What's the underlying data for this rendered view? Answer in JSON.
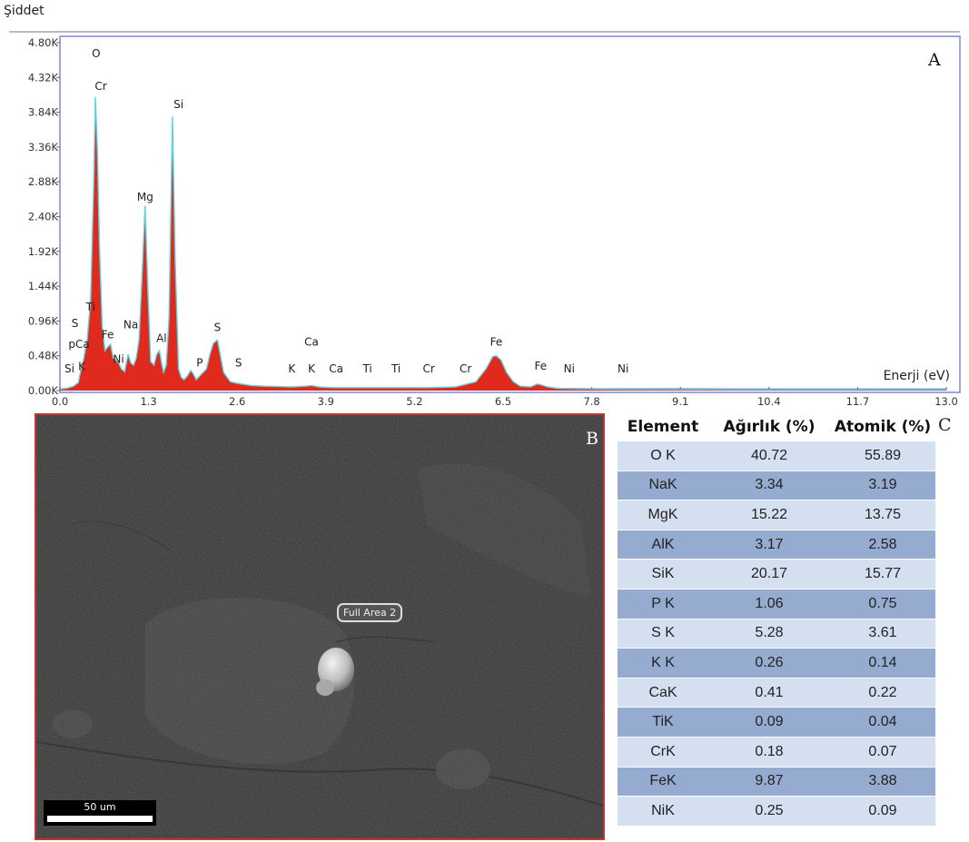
{
  "chart_data": {
    "type": "line",
    "ylabel": "Şiddet",
    "xlabel": "Enerji (eV)",
    "panel_letter": "A",
    "xlim": [
      0.0,
      13.0
    ],
    "ylim": [
      0,
      4800
    ],
    "x_ticks": [
      "0.0",
      "1.3",
      "2.6",
      "3.9",
      "5.2",
      "6.5",
      "7.8",
      "9.1",
      "10.4",
      "11.7",
      "13.0"
    ],
    "y_ticks": [
      "0.00K",
      "0.48K",
      "0.96K",
      "1.44K",
      "1.92K",
      "2.40K",
      "2.88K",
      "3.36K",
      "3.84K",
      "4.32K",
      "4.80K"
    ],
    "series": [
      {
        "x": [
          0.0,
          0.1,
          0.2,
          0.27,
          0.3,
          0.35,
          0.4,
          0.45,
          0.48,
          0.5,
          0.52,
          0.55,
          0.58,
          0.62,
          0.66,
          0.7,
          0.74,
          0.78,
          0.82,
          0.86,
          0.9,
          0.95,
          1.0,
          1.04,
          1.08,
          1.12,
          1.16,
          1.2,
          1.25,
          1.29,
          1.33,
          1.38,
          1.42,
          1.46,
          1.49,
          1.52,
          1.56,
          1.6,
          1.65,
          1.69,
          1.74,
          1.78,
          1.82,
          1.87,
          1.92,
          1.96,
          2.0,
          2.05,
          2.1,
          2.15,
          2.2,
          2.25,
          2.31,
          2.35,
          2.4,
          2.5,
          2.6,
          2.8,
          3.0,
          3.2,
          3.4,
          3.6,
          3.69,
          3.8,
          4.0,
          4.5,
          5.0,
          5.4,
          5.8,
          6.1,
          6.25,
          6.35,
          6.4,
          6.47,
          6.55,
          6.65,
          6.75,
          6.9,
          7.0,
          7.05,
          7.15,
          7.3,
          7.6,
          8.0,
          9.0,
          10.0,
          11.0,
          12.0,
          13.0
        ],
        "y": [
          20,
          30,
          60,
          110,
          250,
          450,
          700,
          1250,
          2300,
          3000,
          4050,
          3300,
          2000,
          900,
          550,
          600,
          640,
          450,
          420,
          380,
          300,
          260,
          500,
          380,
          350,
          450,
          700,
          1500,
          2550,
          1400,
          400,
          350,
          500,
          550,
          380,
          250,
          350,
          1000,
          3780,
          1800,
          300,
          180,
          150,
          200,
          280,
          220,
          150,
          200,
          250,
          300,
          500,
          650,
          700,
          500,
          250,
          120,
          100,
          70,
          60,
          55,
          50,
          60,
          70,
          50,
          40,
          40,
          40,
          40,
          50,
          120,
          300,
          470,
          480,
          420,
          250,
          120,
          60,
          50,
          90,
          80,
          50,
          30,
          25,
          20,
          18,
          15,
          15,
          15,
          15
        ]
      }
    ],
    "peak_labels": [
      {
        "text": "O",
        "x": 0.53,
        "y": 4600
      },
      {
        "text": "Cr",
        "x": 0.6,
        "y": 4150
      },
      {
        "text": "Si",
        "x": 1.74,
        "y": 3900
      },
      {
        "text": "Mg",
        "x": 1.25,
        "y": 2620
      },
      {
        "text": "Na",
        "x": 1.04,
        "y": 860
      },
      {
        "text": "Al",
        "x": 1.49,
        "y": 670
      },
      {
        "text": "Ti",
        "x": 0.45,
        "y": 1100
      },
      {
        "text": "Fe",
        "x": 0.7,
        "y": 720
      },
      {
        "text": "Ni",
        "x": 0.86,
        "y": 380
      },
      {
        "text": "S",
        "x": 0.22,
        "y": 880
      },
      {
        "text": "pCa",
        "x": 0.28,
        "y": 590
      },
      {
        "text": "S",
        "x": 2.31,
        "y": 820
      },
      {
        "text": "P",
        "x": 2.05,
        "y": 330
      },
      {
        "text": "S",
        "x": 2.62,
        "y": 330
      },
      {
        "text": "Si",
        "x": 0.14,
        "y": 250
      },
      {
        "text": "K",
        "x": 0.32,
        "y": 280
      },
      {
        "text": "Ca",
        "x": 3.69,
        "y": 620
      },
      {
        "text": "K",
        "x": 3.4,
        "y": 250
      },
      {
        "text": "K",
        "x": 3.69,
        "y": 250
      },
      {
        "text": "Ca",
        "x": 4.05,
        "y": 250
      },
      {
        "text": "Ti",
        "x": 4.51,
        "y": 250
      },
      {
        "text": "Ti",
        "x": 4.93,
        "y": 250
      },
      {
        "text": "Cr",
        "x": 5.41,
        "y": 250
      },
      {
        "text": "Cr",
        "x": 5.95,
        "y": 250
      },
      {
        "text": "Fe",
        "x": 6.4,
        "y": 620
      },
      {
        "text": "Fe",
        "x": 7.05,
        "y": 290
      },
      {
        "text": "Ni",
        "x": 7.47,
        "y": 250
      },
      {
        "text": "Ni",
        "x": 8.26,
        "y": 250
      }
    ],
    "colors": {
      "fill": "#e02a1e",
      "outline": "#5ed3e2",
      "background_trace": "#3b35a8",
      "frame": "#7f86d6"
    }
  },
  "sem_panel": {
    "panel_letter": "B",
    "area_label": "Full Area 2",
    "scale_bar_label": "50 um"
  },
  "composition_table": {
    "panel_letter": "C",
    "headers": [
      "Element",
      "Ağırlık (%)",
      "Atomik (%)"
    ],
    "rows": [
      [
        "O K",
        "40.72",
        "55.89"
      ],
      [
        "NaK",
        "3.34",
        "3.19"
      ],
      [
        "MgK",
        "15.22",
        "13.75"
      ],
      [
        "AlK",
        "3.17",
        "2.58"
      ],
      [
        "SiK",
        "20.17",
        "15.77"
      ],
      [
        "P K",
        "1.06",
        "0.75"
      ],
      [
        "S K",
        "5.28",
        "3.61"
      ],
      [
        "K K",
        "0.26",
        "0.14"
      ],
      [
        "CaK",
        "0.41",
        "0.22"
      ],
      [
        "TiK",
        "0.09",
        "0.04"
      ],
      [
        "CrK",
        "0.18",
        "0.07"
      ],
      [
        "FeK",
        "9.87",
        "3.88"
      ],
      [
        "NiK",
        "0.25",
        "0.09"
      ]
    ]
  }
}
